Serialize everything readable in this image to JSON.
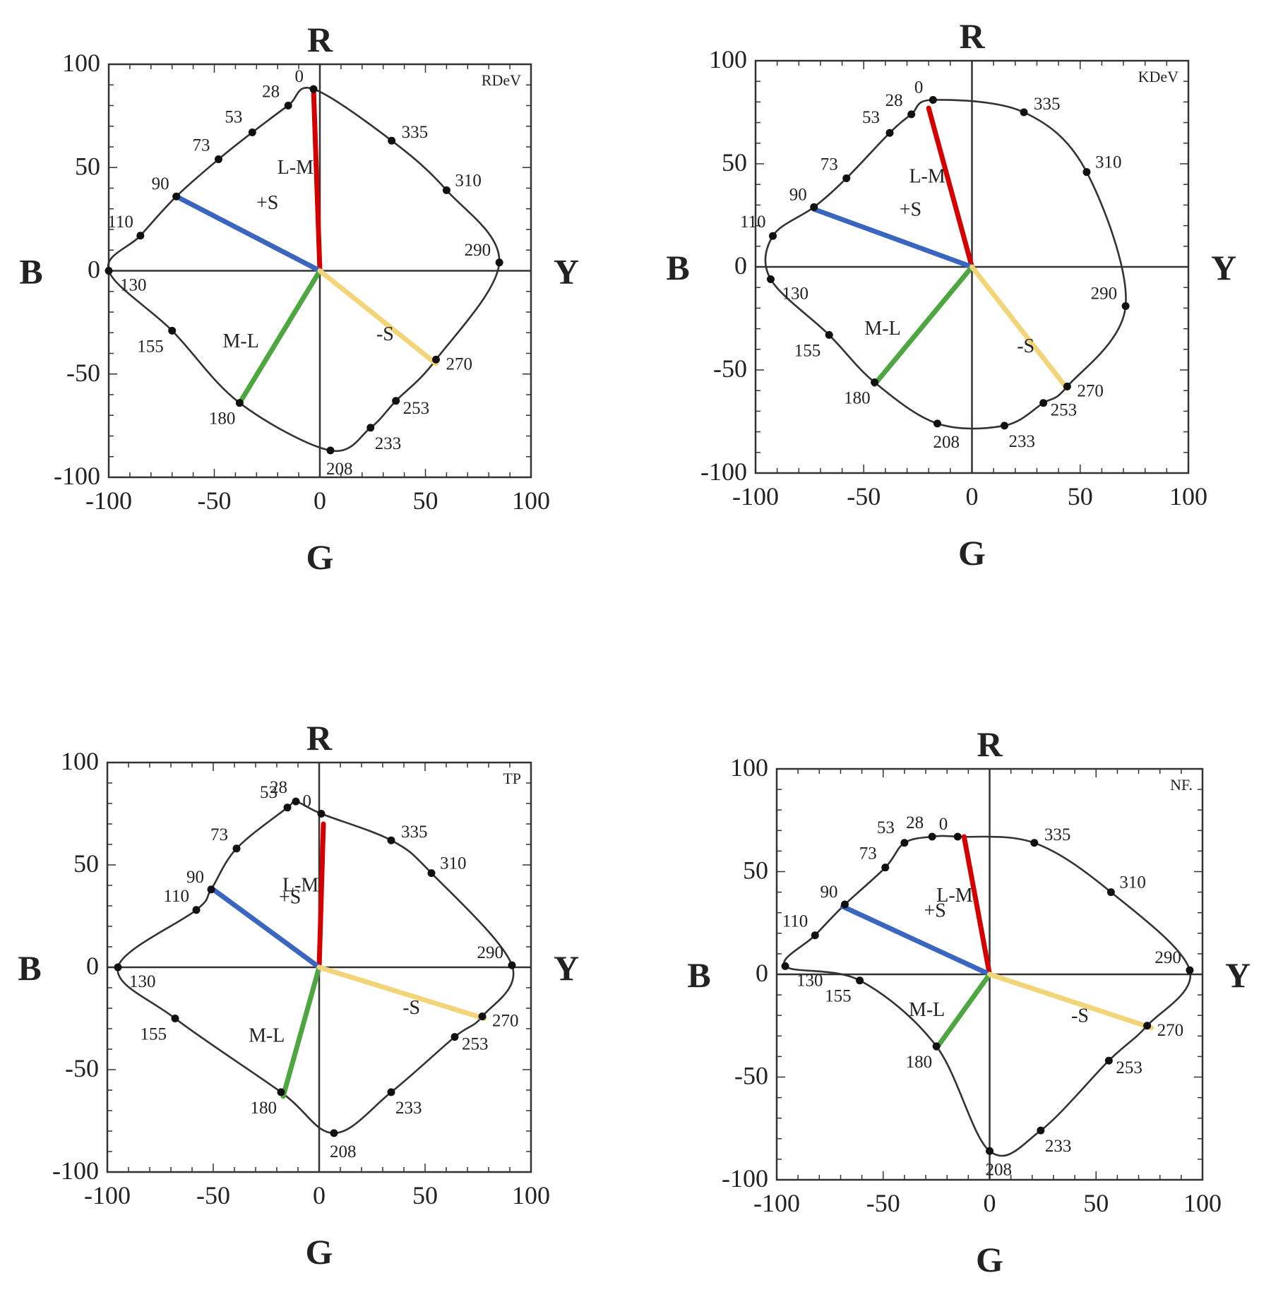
{
  "chart_data": [
    {
      "type": "scatter",
      "corner_label": "RDeV",
      "axis_letters": {
        "top": "R",
        "bottom": "G",
        "left": "B",
        "right": "Y"
      },
      "xlim": [
        -100,
        100
      ],
      "ylim": [
        -100,
        100
      ],
      "xticks": [
        -100,
        -50,
        0,
        50,
        100
      ],
      "yticks": [
        -100,
        -50,
        0,
        50,
        100
      ],
      "grid": false,
      "points": [
        {
          "label": "0",
          "x": -3,
          "y": 88
        },
        {
          "label": "28",
          "x": -15,
          "y": 80
        },
        {
          "label": "53",
          "x": -32,
          "y": 67
        },
        {
          "label": "73",
          "x": -48,
          "y": 54
        },
        {
          "label": "90",
          "x": -68,
          "y": 36
        },
        {
          "label": "110",
          "x": -85,
          "y": 17
        },
        {
          "label": "130",
          "x": -100,
          "y": 0
        },
        {
          "label": "155",
          "x": -70,
          "y": -29
        },
        {
          "label": "180",
          "x": -38,
          "y": -64
        },
        {
          "label": "208",
          "x": 5,
          "y": -87
        },
        {
          "label": "233",
          "x": 24,
          "y": -76
        },
        {
          "label": "253",
          "x": 36,
          "y": -63
        },
        {
          "label": "270",
          "x": 55,
          "y": -43
        },
        {
          "label": "290",
          "x": 85,
          "y": 4
        },
        {
          "label": "310",
          "x": 60,
          "y": 39
        },
        {
          "label": "335",
          "x": 34,
          "y": 63
        }
      ],
      "vectors": [
        {
          "label": "L-M",
          "color": "#d40000",
          "x": -3,
          "y": 88
        },
        {
          "label": "+S",
          "color": "#3a66c0",
          "x": -68,
          "y": 36
        },
        {
          "label": "M-L",
          "color": "#4ea640",
          "x": -38,
          "y": -64
        },
        {
          "label": "-S",
          "color": "#f2d479",
          "x": 55,
          "y": -45
        }
      ]
    },
    {
      "type": "scatter",
      "corner_label": "KDeV",
      "axis_letters": {
        "top": "R",
        "bottom": "G",
        "left": "B",
        "right": "Y"
      },
      "xlim": [
        -100,
        100
      ],
      "ylim": [
        -100,
        100
      ],
      "xticks": [
        -100,
        -50,
        0,
        50,
        100
      ],
      "yticks": [
        -100,
        -50,
        0,
        50,
        100
      ],
      "grid": false,
      "points": [
        {
          "label": "0",
          "x": -18,
          "y": 81
        },
        {
          "label": "28",
          "x": -28,
          "y": 74
        },
        {
          "label": "53",
          "x": -38,
          "y": 65
        },
        {
          "label": "73",
          "x": -58,
          "y": 43
        },
        {
          "label": "90",
          "x": -73,
          "y": 29
        },
        {
          "label": "110",
          "x": -92,
          "y": 15
        },
        {
          "label": "130",
          "x": -93,
          "y": -6
        },
        {
          "label": "155",
          "x": -66,
          "y": -33
        },
        {
          "label": "180",
          "x": -45,
          "y": -56
        },
        {
          "label": "208",
          "x": -16,
          "y": -76
        },
        {
          "label": "233",
          "x": 15,
          "y": -77
        },
        {
          "label": "253",
          "x": 33,
          "y": -66
        },
        {
          "label": "270",
          "x": 44,
          "y": -58
        },
        {
          "label": "290",
          "x": 71,
          "y": -19
        },
        {
          "label": "310",
          "x": 53,
          "y": 46
        },
        {
          "label": "335",
          "x": 24,
          "y": 75
        }
      ],
      "vectors": [
        {
          "label": "L-M",
          "color": "#d40000",
          "x": -20,
          "y": 77
        },
        {
          "label": "+S",
          "color": "#3a66c0",
          "x": -73,
          "y": 28
        },
        {
          "label": "M-L",
          "color": "#4ea640",
          "x": -45,
          "y": -57
        },
        {
          "label": "-S",
          "color": "#f2d479",
          "x": 44,
          "y": -59
        }
      ]
    },
    {
      "type": "scatter",
      "corner_label": "TP",
      "axis_letters": {
        "top": "R",
        "bottom": "G",
        "left": "B",
        "right": "Y"
      },
      "xlim": [
        -100,
        100
      ],
      "ylim": [
        -100,
        100
      ],
      "xticks": [
        -100,
        -50,
        0,
        50,
        100
      ],
      "yticks": [
        -100,
        -50,
        0,
        50,
        100
      ],
      "grid": false,
      "points": [
        {
          "label": "0",
          "x": 1,
          "y": 75
        },
        {
          "label": "28",
          "x": -11,
          "y": 81
        },
        {
          "label": "53",
          "x": -15,
          "y": 78
        },
        {
          "label": "73",
          "x": -39,
          "y": 58
        },
        {
          "label": "90",
          "x": -51,
          "y": 38
        },
        {
          "label": "110",
          "x": -58,
          "y": 28
        },
        {
          "label": "130",
          "x": -95,
          "y": 0
        },
        {
          "label": "155",
          "x": -68,
          "y": -25
        },
        {
          "label": "180",
          "x": -18,
          "y": -61
        },
        {
          "label": "208",
          "x": 7,
          "y": -81
        },
        {
          "label": "233",
          "x": 34,
          "y": -61
        },
        {
          "label": "253",
          "x": 64,
          "y": -34
        },
        {
          "label": "270",
          "x": 77,
          "y": -24
        },
        {
          "label": "290",
          "x": 91,
          "y": 1
        },
        {
          "label": "310",
          "x": 53,
          "y": 46
        },
        {
          "label": "335",
          "x": 34,
          "y": 62
        }
      ],
      "vectors": [
        {
          "label": "L-M",
          "color": "#d40000",
          "x": 2,
          "y": 70
        },
        {
          "label": "+S",
          "color": "#3a66c0",
          "x": -50,
          "y": 38
        },
        {
          "label": "M-L",
          "color": "#4ea640",
          "x": -17,
          "y": -63
        },
        {
          "label": "-S",
          "color": "#f2d479",
          "x": 78,
          "y": -25
        }
      ]
    },
    {
      "type": "scatter",
      "corner_label": "NF.",
      "axis_letters": {
        "top": "R",
        "bottom": "G",
        "left": "B",
        "right": "Y"
      },
      "xlim": [
        -100,
        100
      ],
      "ylim": [
        -100,
        100
      ],
      "xticks": [
        -100,
        -50,
        0,
        50,
        100
      ],
      "yticks": [
        -100,
        -50,
        0,
        50,
        100
      ],
      "grid": false,
      "points": [
        {
          "label": "0",
          "x": -15,
          "y": 67
        },
        {
          "label": "28",
          "x": -27,
          "y": 67
        },
        {
          "label": "53",
          "x": -40,
          "y": 64
        },
        {
          "label": "73",
          "x": -49,
          "y": 52
        },
        {
          "label": "90",
          "x": -68,
          "y": 34
        },
        {
          "label": "110",
          "x": -82,
          "y": 19
        },
        {
          "label": "130",
          "x": -96,
          "y": 4
        },
        {
          "label": "155",
          "x": -61,
          "y": -3
        },
        {
          "label": "180",
          "x": -25,
          "y": -35
        },
        {
          "label": "208",
          "x": 0,
          "y": -86
        },
        {
          "label": "233",
          "x": 24,
          "y": -76
        },
        {
          "label": "253",
          "x": 56,
          "y": -42
        },
        {
          "label": "270",
          "x": 74,
          "y": -25
        },
        {
          "label": "290",
          "x": 94,
          "y": 2
        },
        {
          "label": "310",
          "x": 57,
          "y": 40
        },
        {
          "label": "335",
          "x": 21,
          "y": 64
        }
      ],
      "vectors": [
        {
          "label": "L-M",
          "color": "#d40000",
          "x": -12,
          "y": 67
        },
        {
          "label": "+S",
          "color": "#3a66c0",
          "x": -69,
          "y": 33
        },
        {
          "label": "M-L",
          "color": "#4ea640",
          "x": -25,
          "y": -36
        },
        {
          "label": "-S",
          "color": "#f2d479",
          "x": 76,
          "y": -26
        }
      ]
    }
  ]
}
